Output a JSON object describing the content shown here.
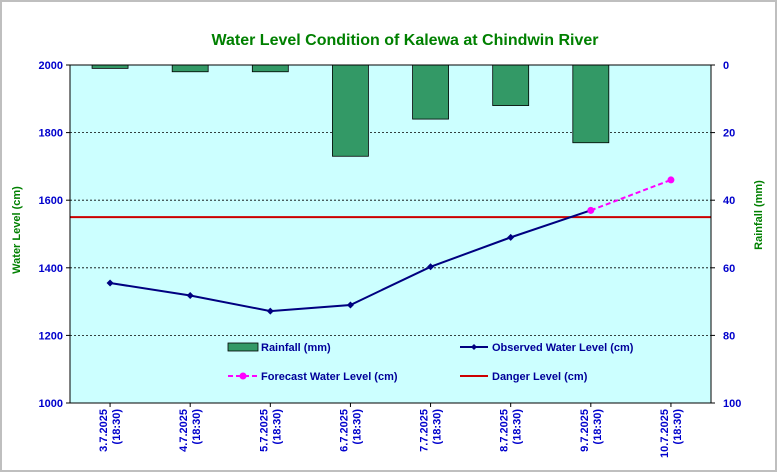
{
  "chart_data": {
    "type": "bar+line",
    "title": "Water Level Condition of Kalewa at Chindwin River",
    "ylabel_left": "Water Level (cm)",
    "ylabel_right": "Rainfall (mm)",
    "x_ticks": [
      [
        "3.7.2025",
        "(18:30)"
      ],
      [
        "4.7.2025",
        "(18:30)"
      ],
      [
        "5.7.2025",
        "(18:30)"
      ],
      [
        "6.7.2025",
        "(18:30)"
      ],
      [
        "7.7.2025",
        "(18:30)"
      ],
      [
        "8.7.2025",
        "(18:30)"
      ],
      [
        "9.7.2025",
        "(18:30)"
      ],
      [
        "10.7.2025",
        "(18:30)"
      ]
    ],
    "ylim_left": [
      1000,
      2000
    ],
    "yticks_left": [
      "1000",
      "1200",
      "1400",
      "1600",
      "1800",
      "2000"
    ],
    "ylim_right": [
      0,
      100
    ],
    "right_axis_inverted": true,
    "yticks_right": [
      "0",
      "20",
      "40",
      "60",
      "80",
      "100"
    ],
    "grid": "horizontal dashed",
    "rainfall_mm": [
      1,
      2,
      2,
      27,
      16,
      12,
      23
    ],
    "observed_water_level_cm": [
      1355,
      1318,
      1272,
      1290,
      1403,
      1490,
      1570
    ],
    "forecast_water_level_cm": [
      null,
      null,
      null,
      null,
      null,
      null,
      1570,
      1660
    ],
    "danger_level_cm": 1550,
    "legend": {
      "rainfall": "Rainfall (mm)",
      "observed": "Observed Water Level (cm)",
      "forecast": "Forecast Water Level (cm)",
      "danger": "Danger Level (cm)"
    },
    "colors": {
      "plot_bg": "#ccffff",
      "bar_fill": "#339966",
      "observed": "#000080",
      "forecast": "#ff00ff",
      "danger": "#cc0000",
      "title": "#008000",
      "ticks": "#0000cc"
    }
  }
}
